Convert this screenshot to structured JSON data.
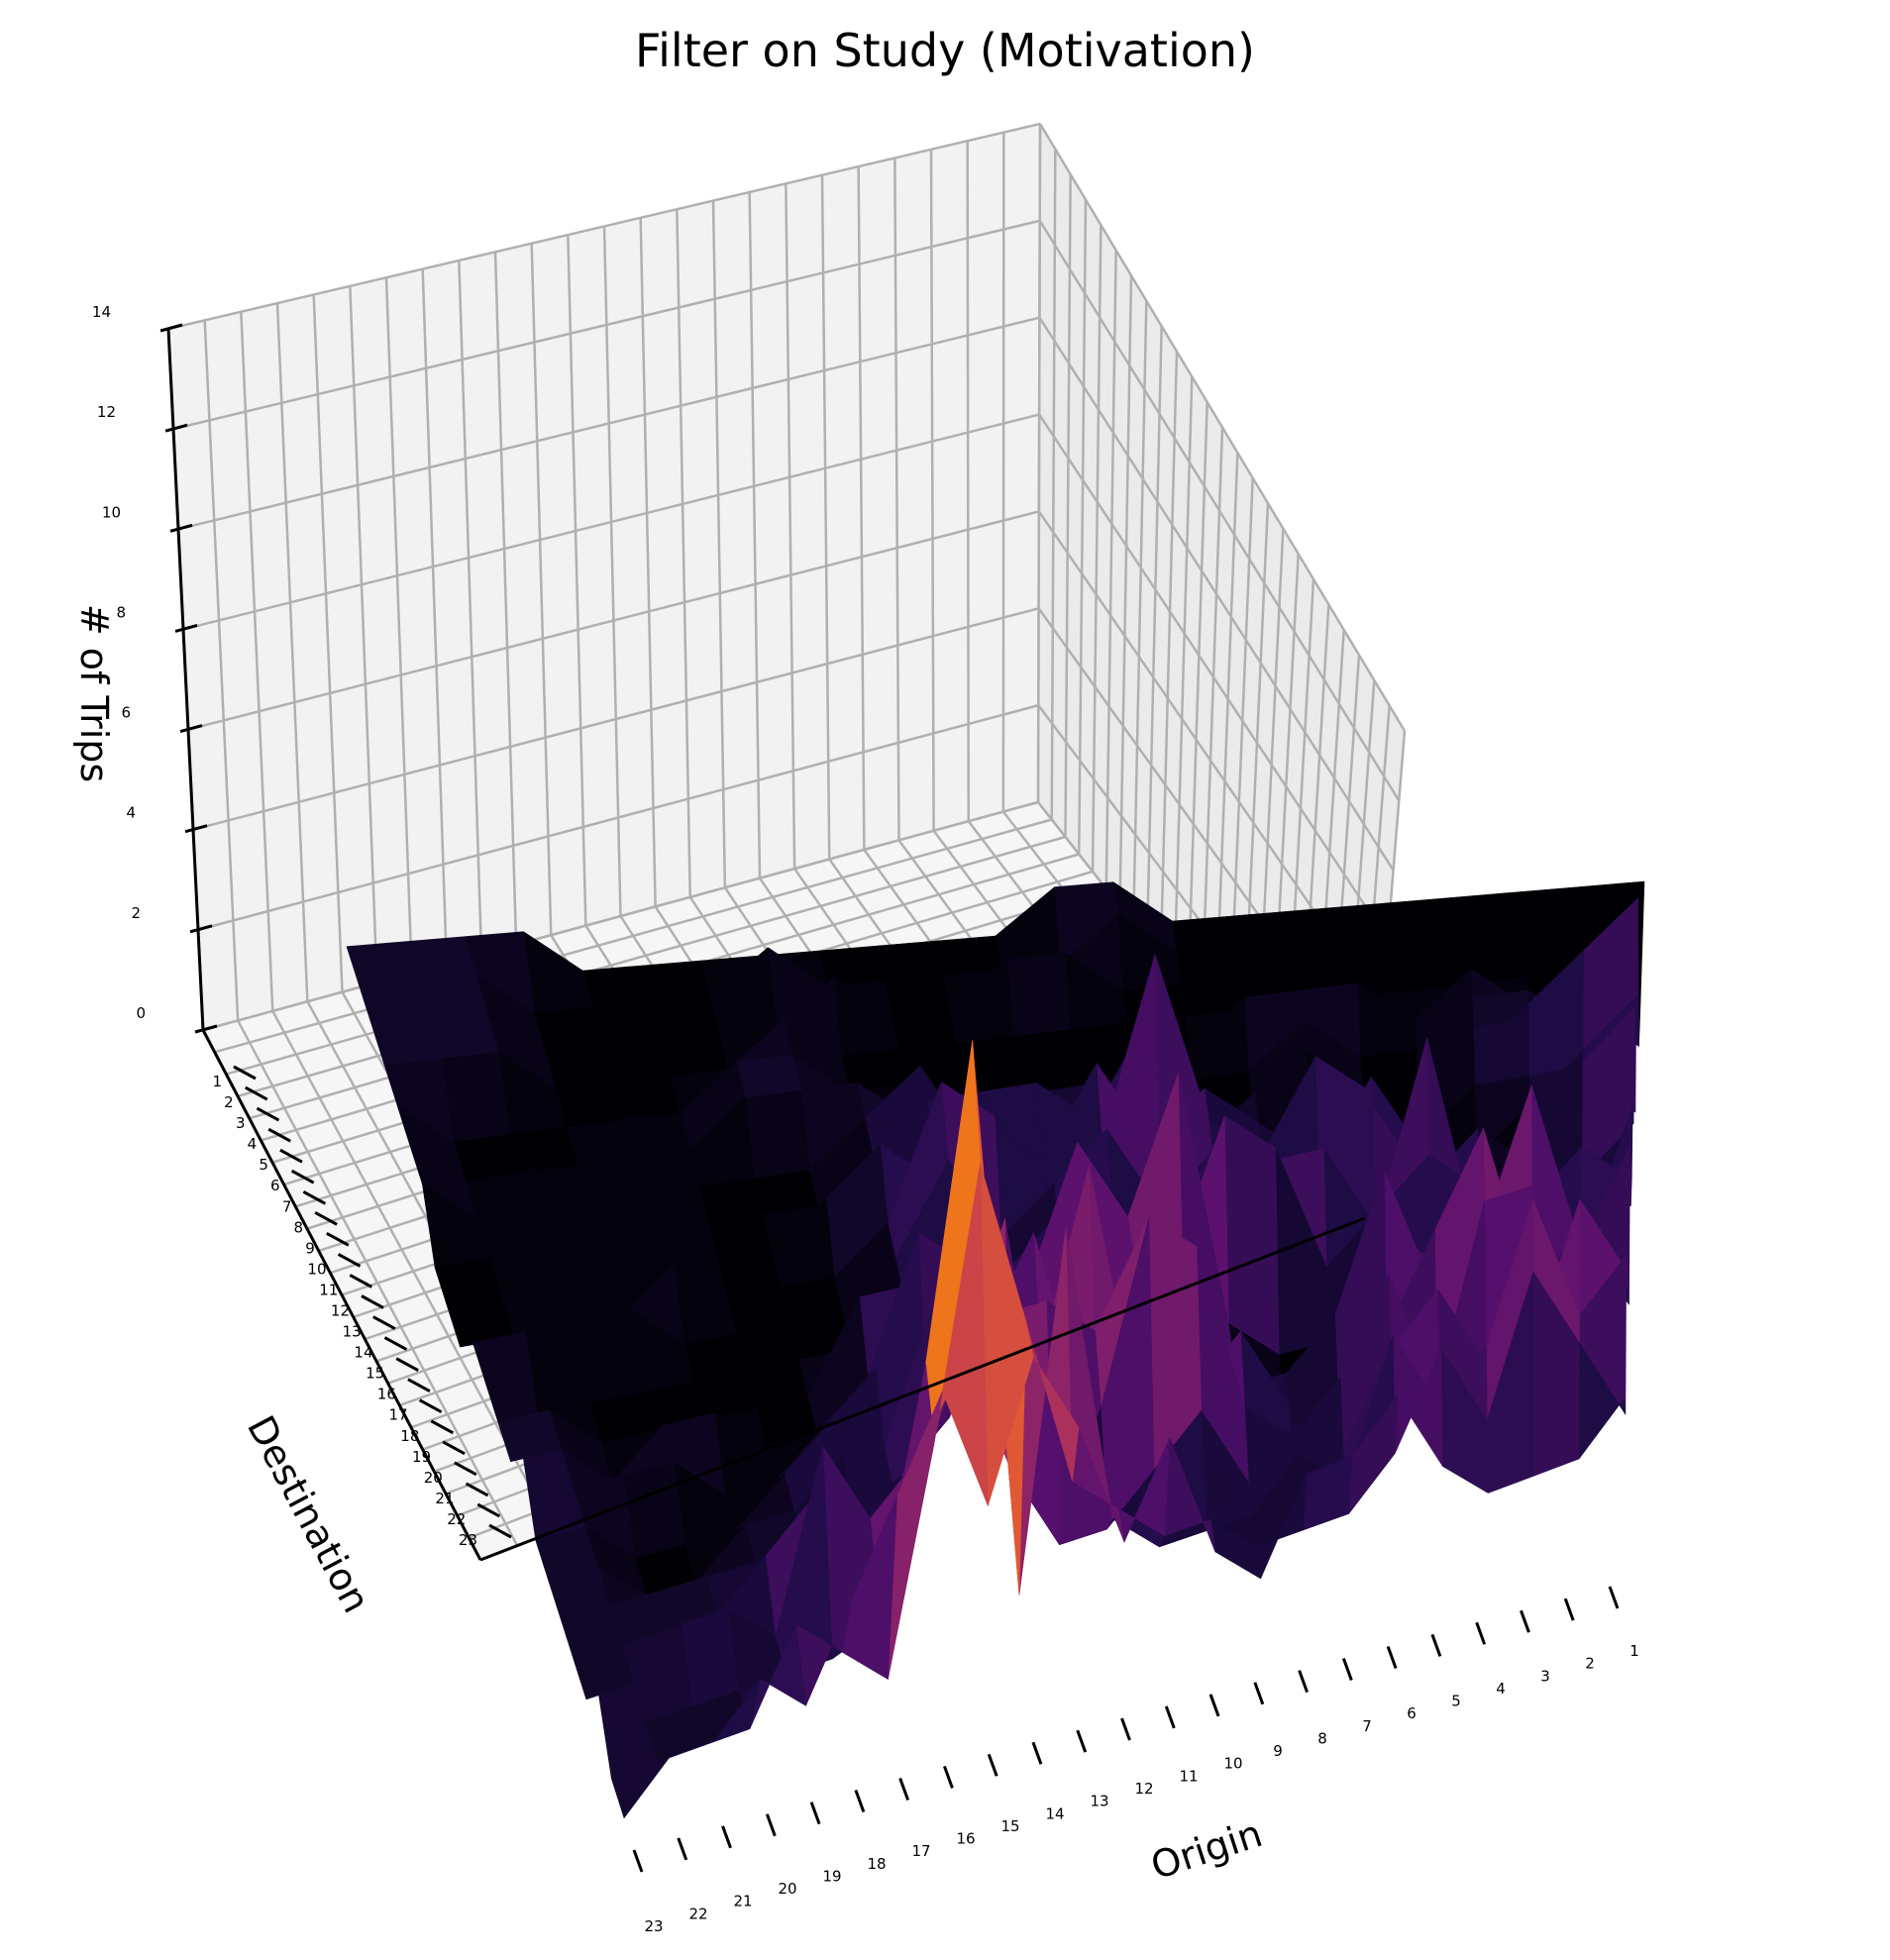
{
  "chart_data": {
    "type": "surface3d",
    "title": "Filter on Study (Motivation)",
    "xlabel": "Origin",
    "ylabel": "Destination",
    "zlabel": "# of Trips",
    "x_ticks": [
      "1",
      "2",
      "3",
      "4",
      "5",
      "6",
      "7",
      "8",
      "9",
      "10",
      "11",
      "12",
      "13",
      "14",
      "15",
      "16",
      "17",
      "18",
      "19",
      "20",
      "21",
      "22",
      "23"
    ],
    "y_ticks": [
      "1",
      "2",
      "3",
      "4",
      "5",
      "6",
      "7",
      "8",
      "9",
      "10",
      "11",
      "12",
      "13",
      "14",
      "15",
      "16",
      "17",
      "18",
      "19",
      "20",
      "21",
      "22",
      "23"
    ],
    "z_ticks": [
      "0",
      "2",
      "4",
      "6",
      "8",
      "10",
      "12",
      "14"
    ],
    "zlim": [
      0,
      14
    ],
    "colormap": "inferno",
    "grid": true,
    "z_matrix_note_rows": "rows = Destination 1..23, columns = Origin 1..23",
    "z": [
      [
        2,
        1,
        1,
        1,
        2,
        4,
        3,
        3,
        1,
        2,
        5,
        3,
        6,
        8,
        5,
        8,
        6,
        4,
        2,
        3,
        2,
        2,
        1
      ],
      [
        1,
        3,
        5,
        2,
        4,
        2,
        1,
        1,
        1,
        2,
        2,
        3,
        4,
        8,
        12,
        6,
        1,
        2,
        3,
        1,
        1,
        1,
        1
      ],
      [
        4,
        3,
        6,
        3,
        2,
        4,
        1,
        2,
        1,
        1,
        1,
        2,
        9,
        1,
        14,
        7,
        2,
        1,
        1,
        1,
        1,
        1,
        2
      ],
      [
        3,
        5,
        2,
        2,
        4,
        3,
        1,
        2,
        1,
        3,
        2,
        1,
        1,
        3,
        6,
        4,
        3,
        5,
        1,
        2,
        2,
        1,
        1
      ],
      [
        2,
        1,
        5,
        5,
        1,
        4,
        2,
        1,
        2,
        6,
        7,
        3,
        1,
        8,
        5,
        2,
        1,
        3,
        2,
        1,
        1,
        1,
        1
      ],
      [
        1,
        3,
        2,
        6,
        4,
        2,
        1,
        1,
        3,
        2,
        6,
        4,
        5,
        5,
        3,
        2,
        1,
        1,
        1,
        1,
        1,
        1,
        1
      ],
      [
        4,
        2,
        6,
        3,
        2,
        5,
        2,
        1,
        1,
        1,
        1,
        7,
        3,
        2,
        3,
        1,
        2,
        1,
        1,
        0,
        0,
        1,
        1
      ],
      [
        2,
        2,
        1,
        2,
        2,
        3,
        0,
        0,
        1,
        3,
        4,
        1,
        5,
        3,
        4,
        1,
        2,
        1,
        0,
        0,
        0,
        1,
        1
      ],
      [
        2,
        3,
        2,
        2,
        1,
        2,
        0,
        0,
        1,
        7,
        4,
        6,
        3,
        2,
        1,
        2,
        1,
        0,
        0,
        1,
        1,
        1,
        2
      ],
      [
        3,
        0,
        0,
        2,
        3,
        2,
        1,
        4,
        5,
        2,
        1,
        1,
        2,
        3,
        4,
        1,
        0,
        0,
        1,
        1,
        0,
        1,
        1
      ],
      [
        2,
        1,
        0,
        0,
        5,
        1,
        3,
        3,
        1,
        4,
        1,
        3,
        2,
        1,
        2,
        2,
        0,
        0,
        0,
        0,
        0,
        1,
        1
      ],
      [
        4,
        3,
        1,
        2,
        1,
        3,
        2,
        2,
        3,
        1,
        2,
        1,
        1,
        2,
        1,
        0,
        0,
        0,
        0,
        0,
        0,
        0,
        1
      ],
      [
        1,
        2,
        0,
        0,
        1,
        3,
        1,
        2,
        2,
        1,
        3,
        2,
        1,
        3,
        1,
        0,
        0,
        0,
        0,
        1,
        0,
        1,
        1
      ],
      [
        3,
        2,
        1,
        0,
        0,
        2,
        3,
        1,
        2,
        6,
        2,
        1,
        3,
        4,
        1,
        0,
        0,
        0,
        1,
        0,
        0,
        0,
        0
      ],
      [
        2,
        1,
        1,
        1,
        0,
        0,
        0,
        1,
        2,
        1,
        3,
        1,
        2,
        1,
        2,
        1,
        0,
        0,
        0,
        0,
        1,
        0,
        0
      ],
      [
        4,
        3,
        2,
        1,
        0,
        0,
        0,
        1,
        0,
        3,
        1,
        2,
        2,
        2,
        1,
        0,
        0,
        0,
        1,
        0,
        0,
        0,
        0
      ],
      [
        0,
        1,
        1,
        1,
        0,
        0,
        1,
        0,
        0,
        0,
        1,
        1,
        0,
        2,
        1,
        0,
        0,
        0,
        0,
        0,
        1,
        0,
        1
      ],
      [
        0,
        0,
        1,
        1,
        0,
        0,
        1,
        0,
        0,
        0,
        0,
        0,
        0,
        0,
        1,
        1,
        1,
        0,
        1,
        0,
        0,
        0,
        1
      ],
      [
        0,
        0,
        0,
        1,
        0,
        1,
        1,
        1,
        0,
        0,
        0,
        0,
        0,
        0,
        0,
        1,
        1,
        0,
        0,
        0,
        0,
        0,
        1
      ],
      [
        0,
        0,
        0,
        0,
        0,
        0,
        0,
        0,
        0,
        0,
        0,
        0,
        0,
        0,
        0,
        1,
        0,
        0,
        0,
        0,
        1,
        1,
        1
      ],
      [
        0,
        0,
        0,
        0,
        0,
        0,
        0,
        0,
        0,
        0,
        1,
        1,
        0,
        0,
        1,
        0,
        0,
        0,
        0,
        0,
        1,
        1,
        1
      ],
      [
        0,
        0,
        0,
        0,
        0,
        0,
        0,
        0,
        0,
        1,
        0,
        0,
        0,
        0,
        0,
        1,
        0,
        0,
        0,
        0,
        1,
        1,
        1
      ],
      [
        0,
        0,
        0,
        0,
        0,
        0,
        0,
        0,
        0,
        1,
        1,
        0,
        0,
        0,
        0,
        0,
        0,
        0,
        0,
        1,
        1,
        1,
        1
      ]
    ]
  }
}
